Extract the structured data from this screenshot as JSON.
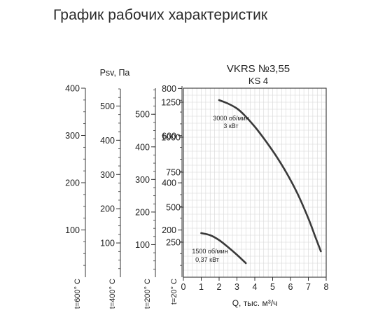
{
  "page": {
    "title": "График рабочих характеристик"
  },
  "chart_data": {
    "type": "line",
    "title": "VKRS №3,55",
    "subtitle": "KS 4",
    "xlabel": "Q, тыс. м³/ч",
    "ylabel": "Psv, Па",
    "xlim": [
      0,
      8
    ],
    "ylim": [
      0,
      1350
    ],
    "x_ticks": [
      0,
      1,
      2,
      3,
      4,
      5,
      6,
      7,
      8
    ],
    "y_ticks": [
      250,
      500,
      750,
      1000,
      1250
    ],
    "grid": true,
    "series": [
      {
        "name": "3000 об/мин",
        "power": "3 кВт",
        "x": [
          2.0,
          2.5,
          3.0,
          3.4,
          4.0,
          4.6,
          5.2,
          5.8,
          6.4,
          7.0,
          7.4,
          7.7
        ],
        "y": [
          1265,
          1240,
          1205,
          1160,
          1075,
          975,
          865,
          740,
          595,
          420,
          285,
          185
        ]
      },
      {
        "name": "1500 об/мин",
        "power": "0,37 кВт",
        "x": [
          1.0,
          1.5,
          2.0,
          2.5,
          3.0,
          3.5
        ],
        "y": [
          315,
          300,
          265,
          215,
          160,
          100
        ]
      }
    ],
    "temperature_axes": [
      {
        "label": "t=600° С",
        "max": 400,
        "ticks": [
          100,
          200,
          300,
          400
        ]
      },
      {
        "label": "t=400° С",
        "max": 550,
        "ticks": [
          100,
          200,
          300,
          400,
          500
        ]
      },
      {
        "label": "t=200° С",
        "max": 580,
        "ticks": [
          100,
          200,
          300,
          400,
          500
        ]
      },
      {
        "label": "t=20° С",
        "max": 810,
        "ticks": [
          200,
          400,
          600,
          800
        ]
      }
    ]
  }
}
